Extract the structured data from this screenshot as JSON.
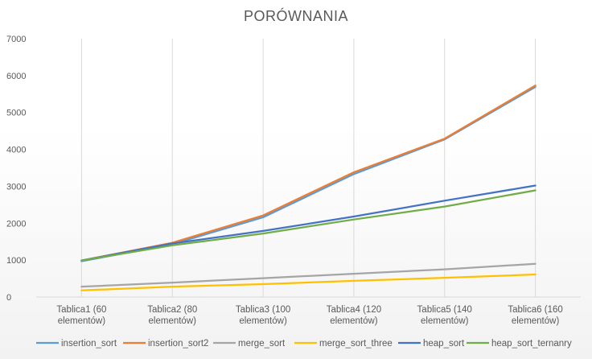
{
  "chart_data": {
    "type": "line",
    "title": "PORÓWNANIA",
    "xlabel": "",
    "ylabel": "",
    "ylim": [
      0,
      7000
    ],
    "yticks": [
      "0",
      "1000",
      "2000",
      "3000",
      "4000",
      "5000",
      "6000",
      "7000"
    ],
    "categories": [
      [
        "Tablica1 (60",
        "elementów)"
      ],
      [
        "Tablica2 (80",
        "elementów)"
      ],
      [
        "Tablica3 (100",
        "elementów)"
      ],
      [
        "Tablica4 (120",
        "elementów)"
      ],
      [
        "Tablica5 (140",
        "elementów)"
      ],
      [
        "Tablica6 (160",
        "elementów)"
      ]
    ],
    "legend_position": "bottom",
    "grid": "vertical",
    "series": [
      {
        "name": "insertion_sort",
        "color": "#5b9bd5",
        "values": [
          970,
          1430,
          2160,
          3330,
          4270,
          5690
        ]
      },
      {
        "name": "insertion_sort2",
        "color": "#ed7d31",
        "values": [
          990,
          1470,
          2210,
          3380,
          4290,
          5730
        ]
      },
      {
        "name": "merge_sort",
        "color": "#a5a5a5",
        "values": [
          280,
          390,
          510,
          630,
          750,
          900
        ]
      },
      {
        "name": "merge_sort_three",
        "color": "#ffc000",
        "values": [
          180,
          280,
          350,
          440,
          520,
          610
        ]
      },
      {
        "name": "heap_sort",
        "color": "#4472c4",
        "values": [
          990,
          1450,
          1790,
          2180,
          2610,
          3020
        ]
      },
      {
        "name": "heap_sort_ternanry",
        "color": "#70ad47",
        "values": [
          990,
          1400,
          1720,
          2100,
          2450,
          2890
        ]
      }
    ]
  }
}
